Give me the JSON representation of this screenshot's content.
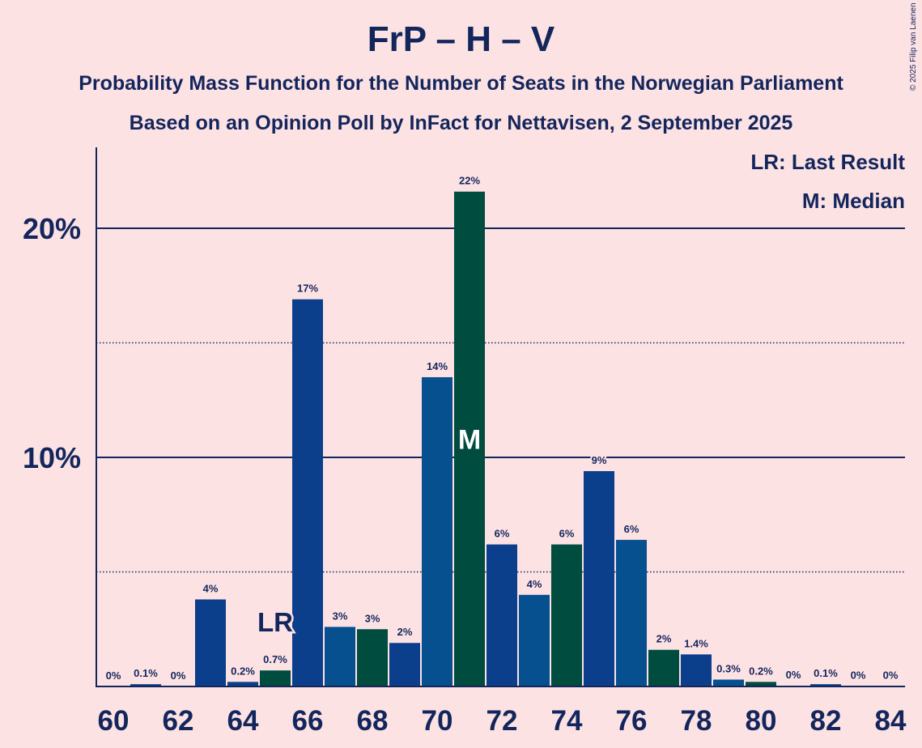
{
  "title": "FrP – H – V",
  "subtitle1": "Probability Mass Function for the Number of Seats in the Norwegian Parliament",
  "subtitle2": "Based on an Opinion Poll by InFact for Nettavisen, 2 September 2025",
  "copyright": "© 2025 Filip van Laenen",
  "legend": {
    "last_result": "LR: Last Result",
    "median": "M: Median"
  },
  "colors": {
    "background": "#fde2e4",
    "text": "#13265c",
    "bar_blue_dark": "#0b3f8c",
    "bar_blue": "#06508f",
    "bar_green": "#004d3f"
  },
  "chart_data": {
    "type": "bar",
    "x": [
      60,
      61,
      62,
      63,
      64,
      65,
      66,
      67,
      68,
      69,
      70,
      71,
      72,
      73,
      74,
      75,
      76,
      77,
      78,
      79,
      80,
      81,
      82,
      83,
      84
    ],
    "values": [
      0,
      0.1,
      0,
      3.8,
      0.2,
      0.7,
      16.9,
      2.6,
      2.5,
      1.9,
      13.5,
      21.6,
      6.2,
      4.0,
      6.2,
      9.4,
      6.4,
      1.6,
      1.4,
      0.3,
      0.2,
      0.03,
      0.1,
      0.02,
      0.01
    ],
    "labels": [
      "0%",
      "0.1%",
      "0%",
      "4%",
      "0.2%",
      "0.7%",
      "17%",
      "3%",
      "3%",
      "2%",
      "14%",
      "22%",
      "6%",
      "4%",
      "6%",
      "9%",
      "6%",
      "2%",
      "1.4%",
      "0.3%",
      "0.2%",
      "0%",
      "0.1%",
      "0%",
      "0%"
    ],
    "bar_colors": [
      "blue_dark",
      "blue_dark",
      "blue_dark",
      "blue_dark",
      "blue_dark",
      "green",
      "blue_dark",
      "blue",
      "green",
      "blue_dark",
      "blue",
      "green",
      "blue_dark",
      "blue",
      "green",
      "blue_dark",
      "blue",
      "green",
      "blue_dark",
      "blue",
      "green",
      "blue_dark",
      "blue_dark",
      "blue_dark",
      "blue_dark"
    ],
    "x_tick_labels": [
      "60",
      "62",
      "64",
      "66",
      "68",
      "70",
      "72",
      "74",
      "76",
      "78",
      "80",
      "82",
      "84"
    ],
    "y_tick_labels": [
      "10%",
      "20%"
    ],
    "y_major_ticks": [
      10,
      20
    ],
    "y_minor_ticks": [
      5,
      15
    ],
    "ylim": [
      0,
      23.6
    ],
    "last_result": {
      "x": 65,
      "label": "LR"
    },
    "median": {
      "x": 71,
      "label": "M"
    }
  }
}
